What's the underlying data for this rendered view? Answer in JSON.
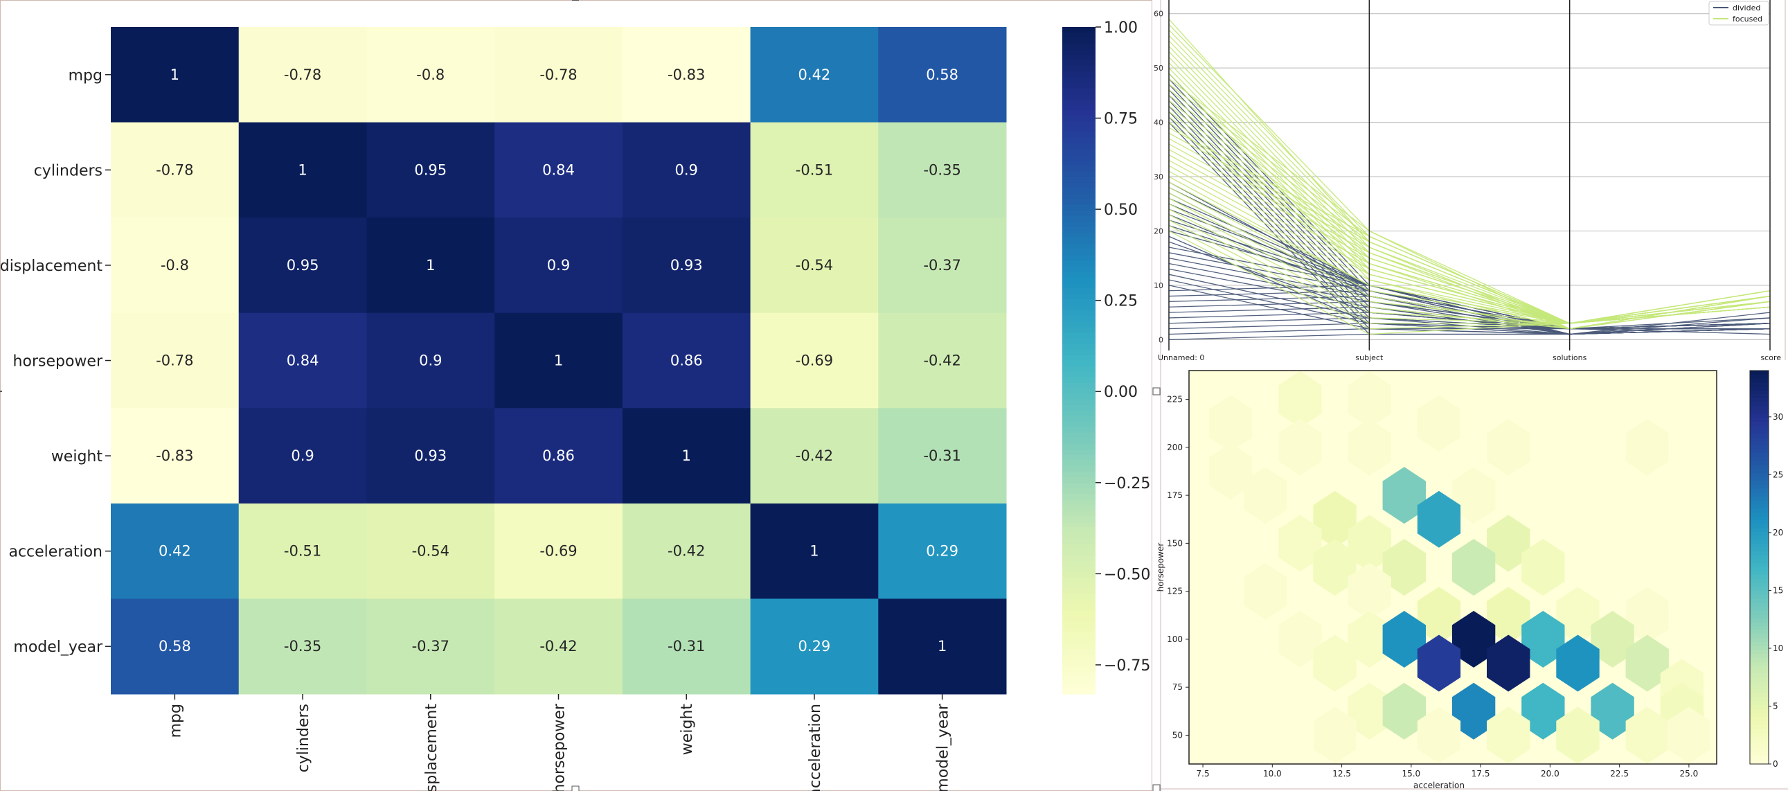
{
  "chart_data": [
    {
      "type": "heatmap",
      "rows": [
        "mpg",
        "cylinders",
        "displacement",
        "horsepower",
        "weight",
        "acceleration",
        "model_year"
      ],
      "cols": [
        "mpg",
        "cylinders",
        "displacement",
        "horsepower",
        "weight",
        "acceleration",
        "model_year"
      ],
      "values": [
        [
          1,
          -0.78,
          -0.8,
          -0.78,
          -0.83,
          0.42,
          0.58
        ],
        [
          -0.78,
          1,
          0.95,
          0.84,
          0.9,
          -0.51,
          -0.35
        ],
        [
          -0.8,
          0.95,
          1,
          0.9,
          0.93,
          -0.54,
          -0.37
        ],
        [
          -0.78,
          0.84,
          0.9,
          1,
          0.86,
          -0.69,
          -0.42
        ],
        [
          -0.83,
          0.9,
          0.93,
          0.86,
          1,
          -0.42,
          -0.31
        ],
        [
          0.42,
          -0.51,
          -0.54,
          -0.69,
          -0.42,
          1,
          0.29
        ],
        [
          0.58,
          -0.35,
          -0.37,
          -0.42,
          -0.31,
          0.29,
          1
        ]
      ],
      "colorbar": {
        "range": [
          -0.83,
          1
        ],
        "ticks": [
          "1.00",
          "0.75",
          "0.50",
          "0.25",
          "0.00",
          "−0.25",
          "−0.50",
          "−0.75"
        ],
        "tick_values": [
          1,
          0.75,
          0.5,
          0.25,
          0,
          -0.25,
          -0.5,
          -0.75
        ]
      },
      "colormap": "YlGnBu"
    },
    {
      "type": "line",
      "subtype": "parallel-coordinates",
      "axes": [
        "Unnamed: 0",
        "subject",
        "solutions",
        "score"
      ],
      "ylim": [
        -2,
        62
      ],
      "yticks": [
        0,
        10,
        20,
        30,
        40,
        50,
        60
      ],
      "grid": true,
      "legend": {
        "placement": "top-right",
        "entries": [
          "divided",
          "focused"
        ]
      },
      "series": [
        {
          "name": "divided",
          "color": "#4a5878",
          "lines": [
            [
              0,
              1,
              1,
              2
            ],
            [
              1,
              2,
              1,
              3
            ],
            [
              2,
              3,
              1,
              2
            ],
            [
              3,
              4,
              2,
              3
            ],
            [
              4,
              5,
              2,
              2
            ],
            [
              5,
              6,
              1,
              4
            ],
            [
              6,
              7,
              2,
              3
            ],
            [
              7,
              8,
              2,
              2
            ],
            [
              8,
              9,
              1,
              5
            ],
            [
              9,
              10,
              2,
              3
            ],
            [
              10,
              2,
              1,
              2
            ],
            [
              11,
              3,
              1,
              3
            ],
            [
              12,
              4,
              2,
              2
            ],
            [
              13,
              6,
              1,
              3
            ],
            [
              14,
              7,
              2,
              4
            ],
            [
              15,
              8,
              1,
              2
            ],
            [
              16,
              9,
              2,
              3
            ],
            [
              17,
              10,
              1,
              2
            ],
            [
              18,
              5,
              2,
              3
            ],
            [
              19,
              3,
              2,
              2
            ],
            [
              20,
              10,
              2,
              1
            ],
            [
              21,
              9,
              1,
              2
            ],
            [
              22,
              10,
              2,
              3
            ],
            [
              23,
              8,
              2,
              2
            ],
            [
              24,
              10,
              1,
              2
            ],
            [
              25,
              9,
              2,
              3
            ],
            [
              26,
              10,
              2,
              2
            ],
            [
              27,
              8,
              2,
              3
            ],
            [
              28,
              10,
              1,
              2
            ],
            [
              29,
              9,
              2,
              3
            ],
            [
              40,
              1,
              1,
              2
            ],
            [
              41,
              2,
              2,
              3
            ],
            [
              42,
              3,
              2,
              2
            ],
            [
              43,
              4,
              1,
              3
            ],
            [
              44,
              5,
              2,
              2
            ],
            [
              45,
              6,
              2,
              3
            ],
            [
              46,
              7,
              1,
              2
            ],
            [
              47,
              8,
              2,
              3
            ],
            [
              48,
              9,
              2,
              2
            ],
            [
              49,
              10,
              2,
              3
            ]
          ]
        },
        {
          "name": "focused",
          "color": "#c5e87a",
          "lines": [
            [
              20,
              1,
              3,
              6
            ],
            [
              21,
              2,
              3,
              7
            ],
            [
              22,
              3,
              3,
              8
            ],
            [
              23,
              4,
              3,
              6
            ],
            [
              24,
              5,
              3,
              9
            ],
            [
              25,
              6,
              2,
              7
            ],
            [
              26,
              7,
              3,
              6
            ],
            [
              27,
              8,
              2,
              8
            ],
            [
              28,
              9,
              3,
              7
            ],
            [
              29,
              10,
              3,
              6
            ],
            [
              30,
              10,
              3,
              8
            ],
            [
              31,
              11,
              2,
              7
            ],
            [
              32,
              12,
              3,
              6
            ],
            [
              33,
              13,
              3,
              9
            ],
            [
              34,
              14,
              2,
              7
            ],
            [
              35,
              15,
              3,
              8
            ],
            [
              36,
              16,
              3,
              6
            ],
            [
              37,
              17,
              2,
              7
            ],
            [
              38,
              18,
              3,
              8
            ],
            [
              39,
              19,
              3,
              6
            ],
            [
              40,
              12,
              3,
              7
            ],
            [
              41,
              13,
              3,
              8
            ],
            [
              42,
              14,
              3,
              6
            ],
            [
              43,
              15,
              3,
              9
            ],
            [
              44,
              16,
              2,
              7
            ],
            [
              45,
              17,
              3,
              8
            ],
            [
              46,
              18,
              3,
              6
            ],
            [
              47,
              19,
              3,
              7
            ],
            [
              48,
              20,
              2,
              8
            ],
            [
              49,
              11,
              3,
              6
            ],
            [
              50,
              12,
              3,
              7
            ],
            [
              51,
              13,
              3,
              8
            ],
            [
              52,
              14,
              3,
              6
            ],
            [
              53,
              15,
              3,
              9
            ],
            [
              54,
              16,
              3,
              7
            ],
            [
              55,
              17,
              2,
              8
            ],
            [
              56,
              18,
              3,
              6
            ],
            [
              57,
              19,
              3,
              7
            ],
            [
              58,
              20,
              3,
              8
            ],
            [
              59,
              18,
              3,
              6
            ]
          ]
        }
      ]
    },
    {
      "type": "heatmap",
      "subtype": "hexbin",
      "xlabel": "acceleration",
      "ylabel": "horsepower",
      "xlim": [
        7,
        26
      ],
      "ylim": [
        35,
        240
      ],
      "xticks": [
        "7.5",
        "10.0",
        "12.5",
        "15.0",
        "17.5",
        "20.0",
        "22.5",
        "25.0"
      ],
      "xtick_values": [
        7.5,
        10,
        12.5,
        15,
        17.5,
        20,
        22.5,
        25
      ],
      "yticks": [
        "50",
        "75",
        "100",
        "125",
        "150",
        "175",
        "200",
        "225"
      ],
      "ytick_values": [
        50,
        75,
        100,
        125,
        150,
        175,
        200,
        225
      ],
      "colorbar": {
        "range": [
          0,
          34
        ],
        "ticks": [
          "0",
          "5",
          "10",
          "15",
          "20",
          "25",
          "30"
        ],
        "tick_values": [
          0,
          5,
          10,
          15,
          20,
          25,
          30
        ]
      },
      "colormap": "YlGnBu",
      "hex_counts": [
        {
          "x": 8.5,
          "y": 212.5,
          "count": 1
        },
        {
          "x": 11.0,
          "y": 225.0,
          "count": 2
        },
        {
          "x": 13.5,
          "y": 225.0,
          "count": 1
        },
        {
          "x": 8.5,
          "y": 187.5,
          "count": 1
        },
        {
          "x": 11.0,
          "y": 200.0,
          "count": 1
        },
        {
          "x": 13.5,
          "y": 200.0,
          "count": 1
        },
        {
          "x": 16.0,
          "y": 212.5,
          "count": 1
        },
        {
          "x": 18.5,
          "y": 200.0,
          "count": 1
        },
        {
          "x": 23.5,
          "y": 200.0,
          "count": 1
        },
        {
          "x": 9.75,
          "y": 175.0,
          "count": 1
        },
        {
          "x": 12.25,
          "y": 162.5,
          "count": 4
        },
        {
          "x": 14.75,
          "y": 175.0,
          "count": 13
        },
        {
          "x": 17.25,
          "y": 175.0,
          "count": 1
        },
        {
          "x": 11.0,
          "y": 150.0,
          "count": 2
        },
        {
          "x": 13.5,
          "y": 150.0,
          "count": 3
        },
        {
          "x": 16.0,
          "y": 162.5,
          "count": 19
        },
        {
          "x": 18.5,
          "y": 150.0,
          "count": 5
        },
        {
          "x": 9.75,
          "y": 125.0,
          "count": 1
        },
        {
          "x": 12.25,
          "y": 137.5,
          "count": 3
        },
        {
          "x": 14.75,
          "y": 137.5,
          "count": 5
        },
        {
          "x": 17.25,
          "y": 137.5,
          "count": 8
        },
        {
          "x": 19.75,
          "y": 137.5,
          "count": 3
        },
        {
          "x": 13.5,
          "y": 125.0,
          "count": 1
        },
        {
          "x": 16.0,
          "y": 112.5,
          "count": 4
        },
        {
          "x": 18.5,
          "y": 112.5,
          "count": 4
        },
        {
          "x": 21.0,
          "y": 112.5,
          "count": 2
        },
        {
          "x": 23.5,
          "y": 112.5,
          "count": 1
        },
        {
          "x": 11.0,
          "y": 100.0,
          "count": 1
        },
        {
          "x": 13.5,
          "y": 100.0,
          "count": 2
        },
        {
          "x": 14.75,
          "y": 100.0,
          "count": 21
        },
        {
          "x": 17.25,
          "y": 100.0,
          "count": 34
        },
        {
          "x": 19.75,
          "y": 100.0,
          "count": 17
        },
        {
          "x": 22.25,
          "y": 100.0,
          "count": 6
        },
        {
          "x": 12.25,
          "y": 87.5,
          "count": 2
        },
        {
          "x": 16.0,
          "y": 87.5,
          "count": 29
        },
        {
          "x": 18.5,
          "y": 87.5,
          "count": 33
        },
        {
          "x": 21.0,
          "y": 87.5,
          "count": 21
        },
        {
          "x": 23.5,
          "y": 87.5,
          "count": 7
        },
        {
          "x": 24.75,
          "y": 75.0,
          "count": 2
        },
        {
          "x": 13.5,
          "y": 62.5,
          "count": 2
        },
        {
          "x": 14.75,
          "y": 62.5,
          "count": 8
        },
        {
          "x": 17.25,
          "y": 62.5,
          "count": 22
        },
        {
          "x": 19.75,
          "y": 62.5,
          "count": 17
        },
        {
          "x": 22.25,
          "y": 62.5,
          "count": 16
        },
        {
          "x": 24.75,
          "y": 62.5,
          "count": 3
        },
        {
          "x": 12.25,
          "y": 50.0,
          "count": 1
        },
        {
          "x": 16.0,
          "y": 50.0,
          "count": 1
        },
        {
          "x": 18.5,
          "y": 50.0,
          "count": 2
        },
        {
          "x": 21.0,
          "y": 50.0,
          "count": 3
        },
        {
          "x": 23.5,
          "y": 50.0,
          "count": 2
        },
        {
          "x": 25.0,
          "y": 50.0,
          "count": 1
        }
      ]
    }
  ]
}
